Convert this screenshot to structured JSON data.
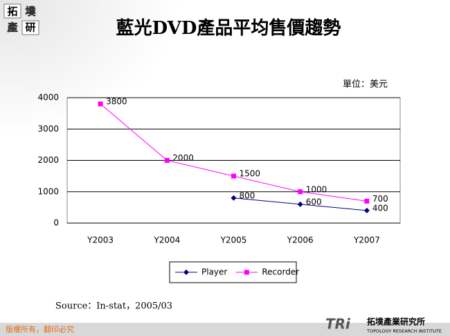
{
  "chart_data": {
    "type": "line",
    "title": "藍光DVD產品平均售價趨勢",
    "unit_note": "單位：美元",
    "categories": [
      "Y2003",
      "Y2004",
      "Y2005",
      "Y2006",
      "Y2007"
    ],
    "series": [
      {
        "name": "Player",
        "color": "#000080",
        "marker": "diamond",
        "values": [
          null,
          null,
          800,
          600,
          400
        ]
      },
      {
        "name": "Recorder",
        "color": "#ff00ff",
        "marker": "square",
        "values": [
          3800,
          2000,
          1500,
          1000,
          700
        ]
      }
    ],
    "ylim": [
      0,
      4000
    ],
    "yticks": [
      0,
      1000,
      2000,
      3000,
      4000
    ],
    "grid": true,
    "legend": "bottom",
    "data_labels": true,
    "source": "Source：In-stat，2005/03"
  },
  "slide": {
    "corner_logo": [
      "拓",
      "墣",
      "產",
      "研"
    ],
    "copyright": "版權所有，翻印必究",
    "footer_logo": "TRi",
    "institute": "拓墣產業研究所",
    "institute_en": "TOPOLOGY RESEARCH INSTITUTE"
  }
}
